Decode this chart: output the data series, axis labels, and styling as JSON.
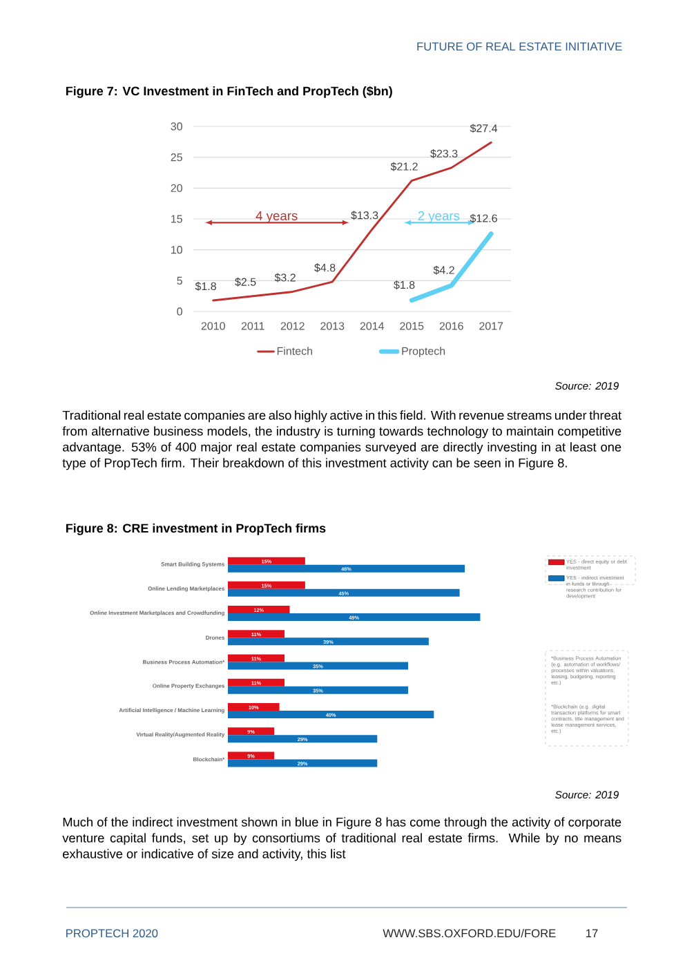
{
  "chart_data": [
    {
      "type": "line",
      "title": "Figure 7: VC Investment in FinTech and PropTech ($bn)",
      "categories": [
        "2010",
        "2011",
        "2012",
        "2013",
        "2014",
        "2015",
        "2016",
        "2017"
      ],
      "series": [
        {
          "name": "Fintech",
          "color": "#c0302f",
          "values": [
            1.8,
            2.5,
            3.2,
            4.8,
            13.3,
            21.2,
            23.3,
            27.4
          ],
          "value_labels": [
            "$1.8",
            "$2.5",
            "$3.2",
            "$4.8",
            "$13.3",
            "$21.2",
            "$23.3",
            "$27.4"
          ]
        },
        {
          "name": "Proptech",
          "color": "#5dd0f4",
          "values": [
            null,
            null,
            null,
            null,
            null,
            1.8,
            4.2,
            12.6
          ],
          "value_labels": [
            null,
            null,
            null,
            null,
            null,
            "$1.8",
            "$4.2",
            "$12.6"
          ]
        }
      ],
      "ylim": [
        0,
        30
      ],
      "yticks": [
        0,
        5,
        10,
        15,
        20,
        25,
        30
      ],
      "grid": "y",
      "legend": "bottom",
      "annotations": [
        "FUTURE OF REAL ESTATE INITIATIVE",
        "4 years",
        "2 years",
        "Source: 2019",
        "Traditional real estate companies are also highly active in this field. With revenue streams under threat from alternative business models, the industry is turning towards technology to maintain competitive advantage. 53% of 400 major real estate companies surveyed are directly investing in at least one type of PropTech firm. Their breakdown of this investment activity can be seen in Figure 8."
      ]
    },
    {
      "type": "bar",
      "orientation": "horizontal",
      "title": "Figure 8: CRE investment in PropTech firms",
      "categories": [
        "Smart Building Systems",
        "Online Lending Marketplaces",
        "Online Investment Marketplaces and Crowdfunding",
        "Drones",
        "Business Process Automation*",
        "Online Property Exchanges",
        "Artificial Intelligence / Machine Learning",
        "Virtual Reality/Augmented Reality",
        "Blockchain*"
      ],
      "series": [
        {
          "name": "YES - direct equity or debt investment",
          "color": "#e2101b",
          "values": [
            15,
            15,
            12,
            11,
            11,
            11,
            10,
            9,
            9
          ],
          "value_labels": [
            "15%",
            "15%",
            "12%",
            "11%",
            "11%",
            "11%",
            "10%",
            "9%",
            "9%"
          ]
        },
        {
          "name": "YES - indirect investment in funds or through research contribution for development",
          "color": "#0f72ba",
          "values": [
            46,
            45,
            49,
            39,
            35,
            35,
            40,
            29,
            29
          ],
          "value_labels": [
            "46%",
            "45%",
            "49%",
            "39%",
            "35%",
            "35%",
            "40%",
            "29%",
            "29%"
          ]
        }
      ],
      "tick_labels": "y",
      "legend": "right",
      "annotations": [
        "*Business Process Automation (e.g. automation of workflows/ processes within valuations, leasing, budgeting, reporting etc.)",
        "*Blockchain (e.g. digital transaction platforms for smart contracts, title management and lease management services, etc.)",
        "Source: 2019",
        "Much of the indirect investment shown in blue in Figure 8 has come through the activity of corporate venture capital funds, set up by consortiums of traditional real estate firms. While by no means exhaustive or indicative of size and activity, this list",
        "PROPTECH 2020",
        "WWW.SBS.OXFORD.EDU/FORE",
        "17"
      ]
    }
  ]
}
